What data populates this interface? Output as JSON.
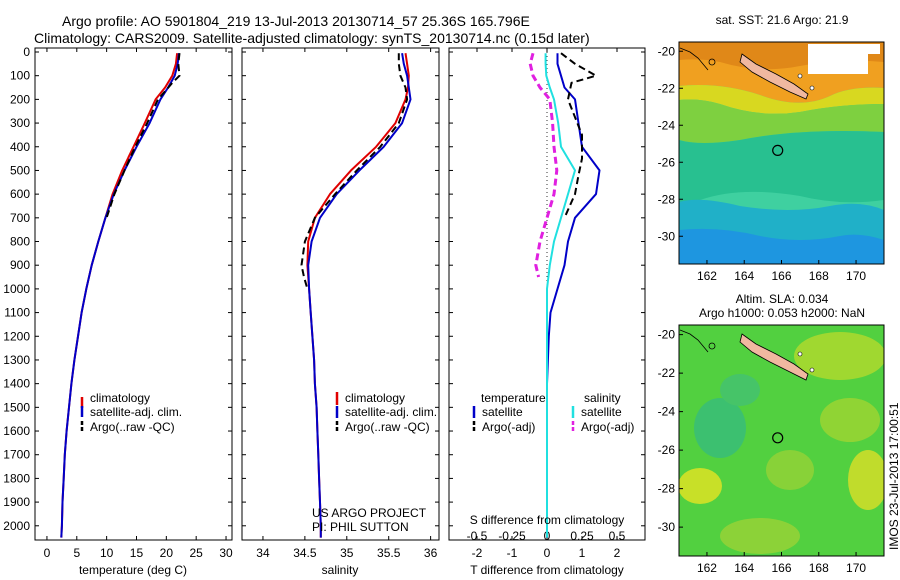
{
  "title_line1": "Argo profile: AO 5901804_219 13-Jul-2013 20130714_57 25.36S 165.796E",
  "title_line2": "Climatology: CARS2009. Satellite-adjusted climatology: synTS_20130714.nc (0.15d later)",
  "credit_line1": "US ARGO PROJECT",
  "credit_line2": "PI: PHIL SUTTON",
  "watermark": "IMOS 23-Jul-2013 17:00:51",
  "colors": {
    "climatology": "#e00000",
    "satellite": "#0000c8",
    "argo": "#000000",
    "sal_satellite": "#20e0e0",
    "sal_argo": "#e020e0",
    "land": "#f0b8a0"
  },
  "depth_ticks": [
    "0",
    "100",
    "200",
    "300",
    "400",
    "500",
    "600",
    "700",
    "800",
    "900",
    "1000",
    "1100",
    "1200",
    "1300",
    "1400",
    "1500",
    "1600",
    "1700",
    "1800",
    "1900",
    "2000"
  ],
  "chart_data": [
    {
      "type": "line",
      "xlabel": "temperature (deg C)",
      "xticks": [
        "0",
        "5",
        "10",
        "15",
        "20",
        "25",
        "30"
      ],
      "xlim": [
        -2,
        31
      ],
      "ylim": [
        2060,
        0
      ],
      "legend": [
        "climatology",
        "satellite-adj. clim.",
        "Argo(..raw -QC)"
      ],
      "series": [
        {
          "name": "climatology",
          "points": [
            [
              21.8,
              5
            ],
            [
              21.6,
              50
            ],
            [
              21.0,
              100
            ],
            [
              19.8,
              150
            ],
            [
              18.2,
              200
            ],
            [
              16.4,
              300
            ],
            [
              14.5,
              400
            ],
            [
              12.6,
              500
            ],
            [
              11.0,
              600
            ],
            [
              9.8,
              700
            ],
            [
              8.6,
              800
            ],
            [
              7.5,
              900
            ],
            [
              6.6,
              1000
            ],
            [
              5.8,
              1100
            ],
            [
              5.2,
              1200
            ],
            [
              4.6,
              1300
            ],
            [
              4.1,
              1400
            ],
            [
              3.7,
              1500
            ],
            [
              3.3,
              1600
            ],
            [
              3.0,
              1700
            ],
            [
              2.8,
              1800
            ],
            [
              2.6,
              1900
            ],
            [
              2.5,
              2000
            ],
            [
              2.4,
              2050
            ]
          ]
        },
        {
          "name": "satellite-adj. clim.",
          "points": [
            [
              22.1,
              5
            ],
            [
              21.9,
              50
            ],
            [
              21.4,
              100
            ],
            [
              20.3,
              150
            ],
            [
              19.0,
              200
            ],
            [
              17.2,
              300
            ],
            [
              15.0,
              400
            ],
            [
              13.0,
              500
            ],
            [
              11.2,
              600
            ],
            [
              9.8,
              700
            ],
            [
              8.6,
              800
            ],
            [
              7.5,
              900
            ],
            [
              6.6,
              1000
            ],
            [
              5.8,
              1100
            ],
            [
              5.2,
              1200
            ],
            [
              4.6,
              1300
            ],
            [
              4.1,
              1400
            ],
            [
              3.7,
              1500
            ],
            [
              3.3,
              1600
            ],
            [
              3.0,
              1700
            ],
            [
              2.8,
              1800
            ],
            [
              2.6,
              1900
            ],
            [
              2.5,
              2000
            ],
            [
              2.4,
              2050
            ]
          ]
        },
        {
          "name": "Argo(..raw -QC)",
          "points": [
            [
              22.2,
              5
            ],
            [
              22.0,
              50
            ],
            [
              22.2,
              100
            ],
            [
              21.0,
              130
            ],
            [
              20.0,
              160
            ],
            [
              18.6,
              200
            ],
            [
              16.8,
              300
            ],
            [
              14.8,
              400
            ],
            [
              13.0,
              500
            ],
            [
              11.3,
              600
            ],
            [
              10.0,
              700
            ]
          ]
        }
      ]
    },
    {
      "type": "line",
      "xlabel": "salinity",
      "xticks": [
        "34",
        "34.5",
        "35",
        "35.5",
        "36"
      ],
      "xlim": [
        33.75,
        36.1
      ],
      "ylim": [
        2060,
        0
      ],
      "legend": [
        "climatology",
        "satellite-adj. clim.",
        "Argo(..raw -QC)"
      ],
      "series": [
        {
          "name": "climatology",
          "points": [
            [
              35.7,
              5
            ],
            [
              35.72,
              50
            ],
            [
              35.74,
              100
            ],
            [
              35.73,
              150
            ],
            [
              35.7,
              200
            ],
            [
              35.58,
              300
            ],
            [
              35.35,
              400
            ],
            [
              35.05,
              500
            ],
            [
              34.8,
              600
            ],
            [
              34.62,
              700
            ],
            [
              34.54,
              800
            ],
            [
              34.53,
              900
            ],
            [
              34.55,
              1000
            ],
            [
              34.57,
              1100
            ],
            [
              34.59,
              1200
            ],
            [
              34.61,
              1300
            ],
            [
              34.62,
              1400
            ],
            [
              34.64,
              1500
            ],
            [
              34.65,
              1600
            ],
            [
              34.66,
              1700
            ],
            [
              34.67,
              1800
            ],
            [
              34.68,
              1900
            ],
            [
              34.69,
              2000
            ],
            [
              34.69,
              2050
            ]
          ]
        },
        {
          "name": "satellite-adj. clim.",
          "points": [
            [
              35.66,
              5
            ],
            [
              35.68,
              50
            ],
            [
              35.72,
              100
            ],
            [
              35.74,
              150
            ],
            [
              35.76,
              200
            ],
            [
              35.66,
              300
            ],
            [
              35.44,
              400
            ],
            [
              35.15,
              500
            ],
            [
              34.88,
              600
            ],
            [
              34.68,
              700
            ],
            [
              34.58,
              800
            ],
            [
              34.54,
              900
            ],
            [
              34.55,
              1000
            ],
            [
              34.57,
              1100
            ],
            [
              34.59,
              1200
            ],
            [
              34.61,
              1300
            ],
            [
              34.62,
              1400
            ],
            [
              34.64,
              1500
            ],
            [
              34.65,
              1600
            ],
            [
              34.66,
              1700
            ],
            [
              34.67,
              1800
            ],
            [
              34.68,
              1900
            ],
            [
              34.69,
              2000
            ],
            [
              34.69,
              2050
            ]
          ]
        },
        {
          "name": "Argo(..raw -QC)",
          "points": [
            [
              35.62,
              5
            ],
            [
              35.62,
              50
            ],
            [
              35.64,
              100
            ],
            [
              35.7,
              150
            ],
            [
              35.72,
              200
            ],
            [
              35.62,
              300
            ],
            [
              35.4,
              400
            ],
            [
              35.12,
              500
            ],
            [
              34.86,
              600
            ],
            [
              34.62,
              700
            ],
            [
              34.5,
              800
            ],
            [
              34.46,
              900
            ],
            [
              34.49,
              950
            ],
            [
              34.53,
              1000
            ]
          ]
        }
      ]
    },
    {
      "type": "line",
      "xlabel": "T difference from climatology",
      "xlabel2": "S difference from climatology",
      "xticks": [
        "-2",
        "-1",
        "0",
        "1",
        "2"
      ],
      "xticks2": [
        "-0.5",
        "-0.25",
        "0",
        "0.25",
        "0.5"
      ],
      "xlim": [
        -2.8,
        2.8
      ],
      "ylim": [
        2060,
        0
      ],
      "legend_headings": [
        "temperature",
        "salinity"
      ],
      "legend": [
        "satellite",
        "Argo(-adj)",
        "satellite",
        "Argo(-adj)"
      ],
      "series": [
        {
          "name": "satellite",
          "variable": "temperature",
          "points": [
            [
              0.3,
              5
            ],
            [
              0.3,
              50
            ],
            [
              0.4,
              100
            ],
            [
              0.5,
              150
            ],
            [
              0.8,
              200
            ],
            [
              0.9,
              300
            ],
            [
              1.0,
              400
            ],
            [
              1.5,
              500
            ],
            [
              1.4,
              600
            ],
            [
              0.8,
              700
            ],
            [
              0.6,
              800
            ],
            [
              0.5,
              900
            ],
            [
              0.3,
              1000
            ],
            [
              0.1,
              1100
            ],
            [
              0.05,
              1200
            ],
            [
              0,
              1400
            ],
            [
              0,
              1600
            ],
            [
              0,
              1800
            ],
            [
              0,
              2000
            ],
            [
              0,
              2050
            ]
          ]
        },
        {
          "name": "Argo(-adj)",
          "variable": "temperature",
          "points": [
            [
              0.4,
              5
            ],
            [
              0.8,
              50
            ],
            [
              1.4,
              100
            ],
            [
              0.7,
              130
            ],
            [
              0.6,
              200
            ],
            [
              1.0,
              350
            ],
            [
              1.0,
              450
            ],
            [
              0.9,
              520
            ],
            [
              0.8,
              600
            ],
            [
              0.5,
              700
            ]
          ]
        },
        {
          "name": "satellite",
          "variable": "salinity",
          "points": [
            [
              -0.01,
              5
            ],
            [
              -0.01,
              50
            ],
            [
              -0.005,
              100
            ],
            [
              0.02,
              150
            ],
            [
              0.05,
              200
            ],
            [
              0.08,
              300
            ],
            [
              0.1,
              400
            ],
            [
              0.2,
              500
            ],
            [
              0.15,
              600
            ],
            [
              0.1,
              700
            ],
            [
              0.05,
              800
            ],
            [
              0.02,
              900
            ],
            [
              0,
              1000
            ],
            [
              0,
              1200
            ],
            [
              0,
              1400
            ],
            [
              0,
              1600
            ],
            [
              0,
              1800
            ],
            [
              0,
              2000
            ],
            [
              0,
              2050
            ]
          ]
        },
        {
          "name": "Argo(-adj)",
          "variable": "salinity",
          "points": [
            [
              -0.1,
              5
            ],
            [
              -0.12,
              50
            ],
            [
              -0.1,
              100
            ],
            [
              -0.05,
              150
            ],
            [
              0.02,
              200
            ],
            [
              0.04,
              300
            ],
            [
              0.05,
              400
            ],
            [
              0.07,
              500
            ],
            [
              0.05,
              600
            ],
            [
              0,
              700
            ],
            [
              -0.05,
              800
            ],
            [
              -0.08,
              900
            ],
            [
              -0.06,
              950
            ]
          ]
        }
      ]
    },
    {
      "type": "heatmap",
      "title": "sat. SST: 21.6  Argo: 21.9",
      "xticks": [
        "162",
        "164",
        "166",
        "168",
        "170"
      ],
      "yticks": [
        "-20",
        "-22",
        "-24",
        "-26",
        "-28",
        "-30"
      ],
      "xlim": [
        160.5,
        171.5
      ],
      "ylim": [
        -31.5,
        -19.5
      ],
      "profile_location": [
        165.796,
        -25.36
      ]
    },
    {
      "type": "heatmap",
      "title_line1": "Altim. SLA: 0.034",
      "title_line2": "Argo h1000: 0.053 h2000: NaN",
      "xticks": [
        "162",
        "164",
        "166",
        "168",
        "170"
      ],
      "yticks": [
        "-20",
        "-22",
        "-24",
        "-26",
        "-28",
        "-30"
      ],
      "xlim": [
        160.5,
        171.5
      ],
      "ylim": [
        -31.5,
        -19.5
      ],
      "profile_location": [
        165.796,
        -25.36
      ]
    }
  ]
}
